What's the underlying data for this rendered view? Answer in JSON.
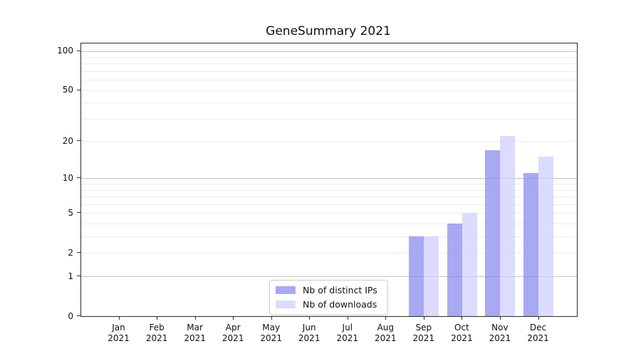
{
  "chart_data": {
    "type": "bar",
    "title": "GeneSummary 2021",
    "x_categories": [
      "Jan 2021",
      "Feb 2021",
      "Mar 2021",
      "Apr 2021",
      "May 2021",
      "Jun 2021",
      "Jul 2021",
      "Aug 2021",
      "Sep 2021",
      "Oct 2021",
      "Nov 2021",
      "Dec 2021"
    ],
    "series": [
      {
        "name": "Nb of distinct IPs",
        "color": "#8888ee",
        "alpha": 0.72,
        "values": [
          0,
          0,
          0,
          0,
          0,
          0,
          0,
          0,
          3,
          4,
          17,
          11
        ]
      },
      {
        "name": "Nb of downloads",
        "color": "#ccccff",
        "alpha": 0.68,
        "values": [
          0,
          0,
          0,
          0,
          0,
          0,
          0,
          0,
          3,
          5,
          22,
          15
        ]
      }
    ],
    "y_scale": "log10(1+v)",
    "ylim": [
      0,
      114
    ],
    "y_ticks": [
      0,
      1,
      2,
      5,
      10,
      20,
      50,
      100
    ],
    "y_major_gridlines": [
      1,
      10,
      100
    ],
    "y_minor_gridlines": [
      2,
      3,
      4,
      5,
      6,
      7,
      8,
      9,
      20,
      30,
      40,
      50,
      60,
      70,
      80,
      90
    ],
    "grid": "on",
    "xlabel": "",
    "ylabel": "",
    "legend_position": "lower center (inside plot)"
  }
}
